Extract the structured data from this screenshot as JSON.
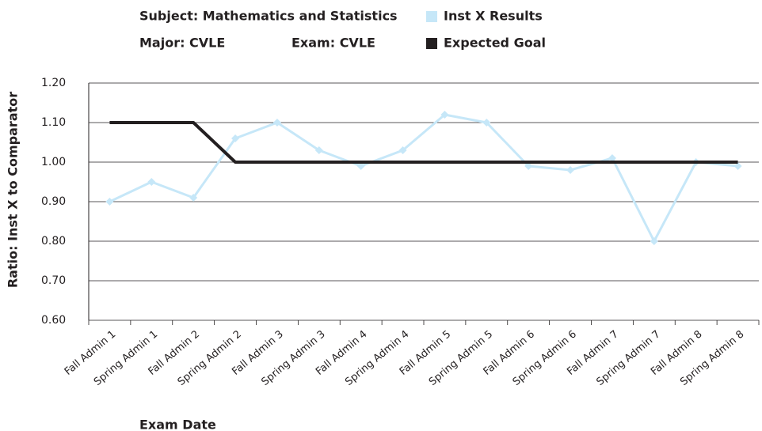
{
  "chart_data": {
    "type": "line",
    "subject": "Subject: Mathematics and Statistics",
    "major": "Major: CVLE",
    "exam": "Exam: CVLE",
    "x_label": "Exam Date",
    "y_label": "Ratio: Inst X to Comparator",
    "categories": [
      "Fall Admin 1",
      "Spring Admin 1",
      "Fall Admin 2",
      "Spring Admin 2",
      "Fall Admin 3",
      "Spring Admin 3",
      "Fall Admin 4",
      "Spring Admin 4",
      "Fall Admin 5",
      "Spring Admin 5",
      "Fall Admin 6",
      "Spring Admin 6",
      "Fall Admin 7",
      "Spring Admin 7",
      "Fall Admin 8",
      "Spring Admin 8"
    ],
    "series": [
      {
        "name": "Inst X Results",
        "color": "#c6e7f8",
        "marker": "diamond",
        "values": [
          0.9,
          0.95,
          0.91,
          1.06,
          1.1,
          1.03,
          0.99,
          1.03,
          1.12,
          1.1,
          0.99,
          0.98,
          1.01,
          0.8,
          1.0,
          0.99
        ]
      },
      {
        "name": "Expected Goal",
        "color": "#231f20",
        "values": [
          1.1,
          1.1,
          1.1,
          1.0,
          1.0,
          1.0,
          1.0,
          1.0,
          1.0,
          1.0,
          1.0,
          1.0,
          1.0,
          1.0,
          1.0,
          1.0
        ]
      }
    ],
    "ylim": [
      0.6,
      1.2
    ],
    "yticks": [
      {
        "value": 0.6,
        "label": "0.60"
      },
      {
        "value": 0.7,
        "label": "0.70"
      },
      {
        "value": 0.8,
        "label": "0.80"
      },
      {
        "value": 0.9,
        "label": "0.90"
      },
      {
        "value": 1.0,
        "label": "1.00"
      },
      {
        "value": 1.1,
        "label": "1.10"
      },
      {
        "value": 1.2,
        "label": "1.20"
      }
    ],
    "grid": true,
    "legend": "top"
  }
}
